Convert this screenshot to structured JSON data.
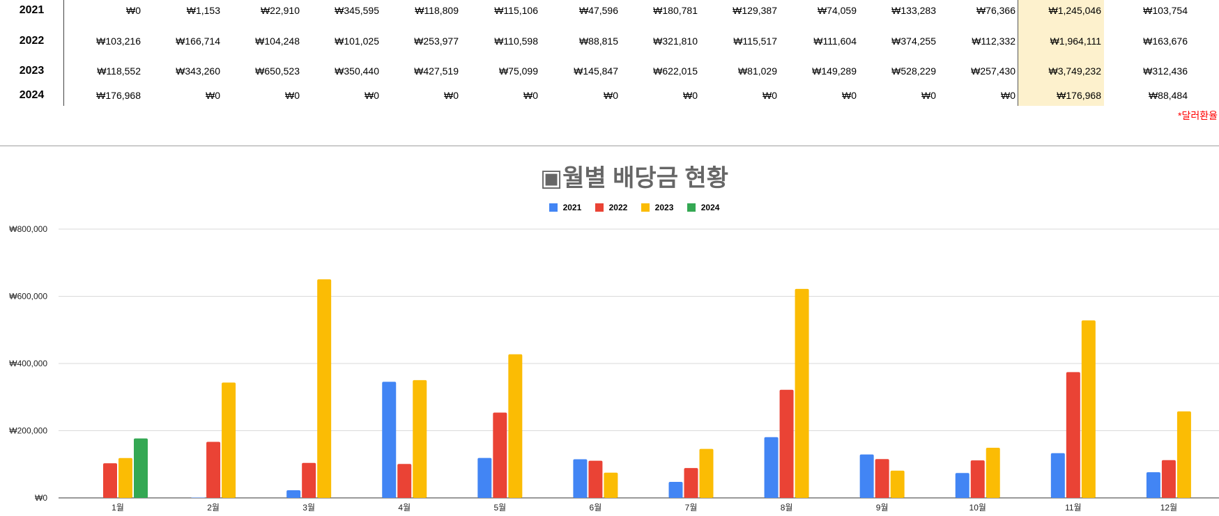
{
  "table": {
    "rows": [
      {
        "year": "2021",
        "values": [
          "₩0",
          "₩1,153",
          "₩22,910",
          "₩345,595",
          "₩118,809",
          "₩115,106",
          "₩47,596",
          "₩180,781",
          "₩129,387",
          "₩74,059",
          "₩133,283",
          "₩76,366"
        ],
        "total": "₩1,245,046",
        "avg": "₩103,754"
      },
      {
        "year": "2022",
        "values": [
          "₩103,216",
          "₩166,714",
          "₩104,248",
          "₩101,025",
          "₩253,977",
          "₩110,598",
          "₩88,815",
          "₩321,810",
          "₩115,517",
          "₩111,604",
          "₩374,255",
          "₩112,332"
        ],
        "total": "₩1,964,111",
        "avg": "₩163,676"
      },
      {
        "year": "2023",
        "values": [
          "₩118,552",
          "₩343,260",
          "₩650,523",
          "₩350,440",
          "₩427,519",
          "₩75,099",
          "₩145,847",
          "₩622,015",
          "₩81,029",
          "₩149,289",
          "₩528,229",
          "₩257,430"
        ],
        "total": "₩3,749,232",
        "avg": "₩312,436"
      },
      {
        "year": "2024",
        "values": [
          "₩176,968",
          "₩0",
          "₩0",
          "₩0",
          "₩0",
          "₩0",
          "₩0",
          "₩0",
          "₩0",
          "₩0",
          "₩0",
          "₩0"
        ],
        "total": "₩176,968",
        "avg": "₩88,484"
      }
    ],
    "note": "*달러환율"
  },
  "colors": {
    "s2021": "#4285f4",
    "s2022": "#ea4335",
    "s2023": "#fbbc04",
    "s2024": "#34a853",
    "highlight": "#fdf1cd",
    "note": "#ff0000"
  },
  "chart_data": {
    "type": "bar",
    "title": "▣월별 배당금 현황",
    "categories": [
      "1월",
      "2월",
      "3월",
      "4월",
      "5월",
      "6월",
      "7월",
      "8월",
      "9월",
      "10월",
      "11월",
      "12월"
    ],
    "series": [
      {
        "name": "2021",
        "values": [
          0,
          1153,
          22910,
          345595,
          118809,
          115106,
          47596,
          180781,
          129387,
          74059,
          133283,
          76366
        ]
      },
      {
        "name": "2022",
        "values": [
          103216,
          166714,
          104248,
          101025,
          253977,
          110598,
          88815,
          321810,
          115517,
          111604,
          374255,
          112332
        ]
      },
      {
        "name": "2023",
        "values": [
          118552,
          343260,
          650523,
          350440,
          427519,
          75099,
          145847,
          622015,
          81029,
          149289,
          528229,
          257430
        ]
      },
      {
        "name": "2024",
        "values": [
          176968,
          0,
          0,
          0,
          0,
          0,
          0,
          0,
          0,
          0,
          0,
          0
        ]
      }
    ],
    "ylim": [
      0,
      800000
    ],
    "yticks": [
      "₩0",
      "₩200,000",
      "₩400,000",
      "₩600,000",
      "₩800,000"
    ],
    "legend": "top",
    "grid": true
  }
}
